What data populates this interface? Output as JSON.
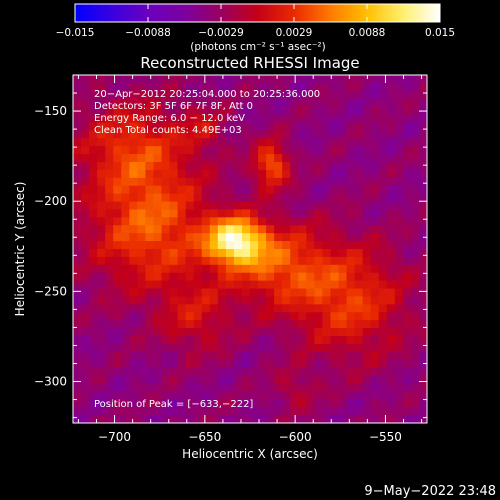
{
  "colorbar": {
    "ticks": [
      "−0.015",
      "−0.0088",
      "−0.0029",
      "0.0029",
      "0.0088",
      "0.015"
    ],
    "unit_label": "(photons cm⁻² s⁻¹ asec⁻²)",
    "range": [
      -0.015,
      0.015
    ],
    "stops": [
      "#0000ff",
      "#3a00e0",
      "#6a00c0",
      "#7d00a0",
      "#9a0060",
      "#c40018",
      "#ea2a00",
      "#ff7a00",
      "#ffc000",
      "#fff070",
      "#ffffff"
    ]
  },
  "chart_data": {
    "type": "heatmap",
    "title": "Reconstructed RHESSI Image",
    "xlabel": "Heliocentric X (arcsec)",
    "ylabel": "Heliocentric Y (arcsec)",
    "xlim": [
      -723,
      -527
    ],
    "ylim": [
      -323,
      -130
    ],
    "xticks": [
      -700,
      -650,
      -600,
      -550
    ],
    "yticks": [
      -150,
      -200,
      -250,
      -300
    ],
    "xtick_labels": [
      "−700",
      "−650",
      "−600",
      "−550"
    ],
    "ytick_labels": [
      "−150",
      "−200",
      "−250",
      "−300"
    ],
    "annotations": [
      "20−Apr−2012 20:25:04.000 to 20:25:36.000",
      "Detectors: 3F 5F 6F 7F 8F, Att 0",
      "Energy Range: 6.0 − 12.0 keV",
      "Clean     Total counts: 4.49E+03"
    ],
    "peak_label": "Position of Peak = [−633,−222]",
    "peak": [
      -633,
      -222
    ],
    "background_level": -0.004,
    "sources": [
      {
        "x": -633,
        "y": -222,
        "sigma_x": 11,
        "sigma_y": 9,
        "amp": 0.0155
      },
      {
        "x": -613,
        "y": -180,
        "sigma_x": 7,
        "sigma_y": 9,
        "amp": 0.009
      },
      {
        "x": -680,
        "y": -215,
        "sigma_x": 24,
        "sigma_y": 24,
        "amp": 0.0085
      },
      {
        "x": -610,
        "y": -235,
        "sigma_x": 20,
        "sigma_y": 16,
        "amp": 0.0075
      },
      {
        "x": -570,
        "y": -255,
        "sigma_x": 22,
        "sigma_y": 22,
        "amp": 0.0072
      },
      {
        "x": -690,
        "y": -170,
        "sigma_x": 22,
        "sigma_y": 18,
        "amp": 0.0065
      },
      {
        "x": -655,
        "y": -265,
        "sigma_x": 14,
        "sigma_y": 14,
        "amp": 0.0045
      },
      {
        "x": -600,
        "y": -305,
        "sigma_x": 8,
        "sigma_y": 8,
        "amp": 0.003
      },
      {
        "x": -650,
        "y": -160,
        "sigma_x": 8,
        "sigma_y": 8,
        "amp": 0.0035
      }
    ]
  },
  "footer": {
    "timestamp": "9−May−2022 23:48"
  }
}
